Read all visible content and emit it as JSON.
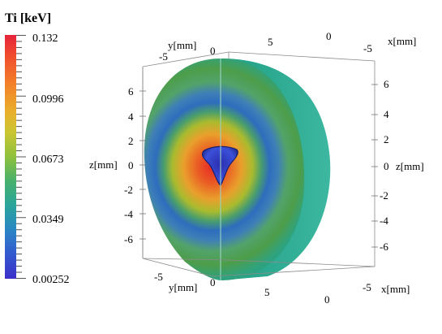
{
  "legend": {
    "title": "Ti [keV]",
    "ticks": [
      "0.132",
      "0.0996",
      "0.0673",
      "0.0349",
      "0.00252"
    ]
  },
  "colormap": [
    "#e5243b",
    "#f3802a",
    "#c9c531",
    "#47b06c",
    "#2a86c4",
    "#3c2fc9"
  ],
  "axes": {
    "y_label": "y[mm]",
    "x_label": "x[mm]",
    "z_label": "z[mm]",
    "top_y_ticks": [
      "-5",
      "0",
      "5"
    ],
    "top_x_ticks": [
      "0",
      "-5"
    ],
    "bottom_y_ticks": [
      "-5",
      "0",
      "5"
    ],
    "bottom_x_ticks": [
      "-5",
      "0"
    ],
    "z_ticks_left": [
      "6",
      "4",
      "2",
      "0",
      "-2",
      "-4",
      "-6"
    ],
    "z_ticks_right": [
      "6",
      "4",
      "2",
      "0",
      "-2",
      "-4",
      "-6"
    ]
  }
}
